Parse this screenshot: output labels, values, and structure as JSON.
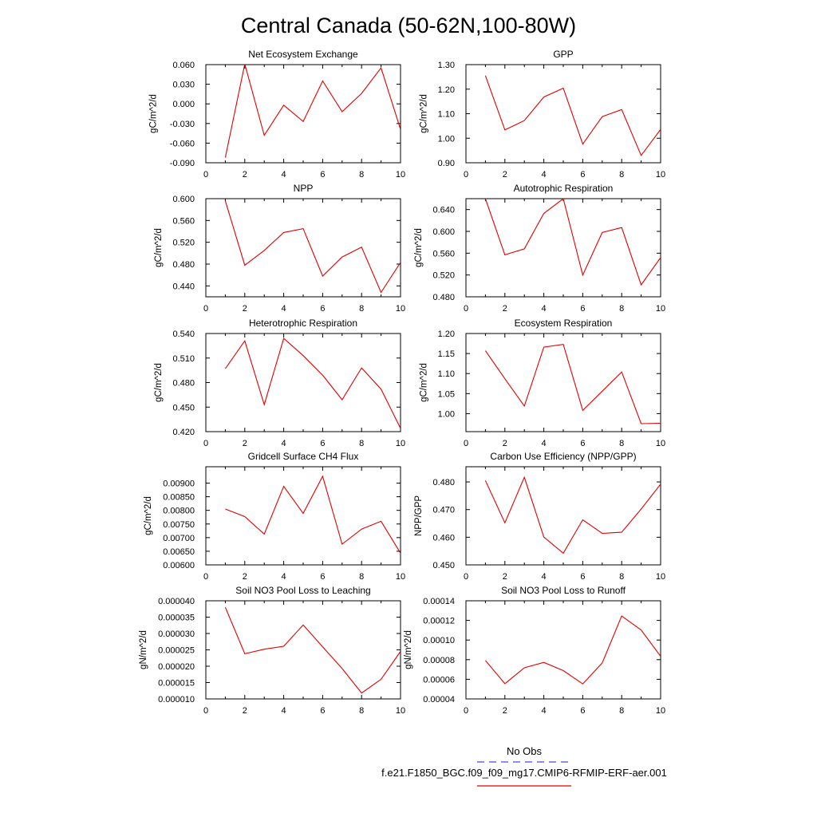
{
  "title": "Central Canada (50-62N,100-80W)",
  "legend": {
    "obs_label": "No Obs",
    "obs_color": "#4a4ad8",
    "case_label": "f.e21.F1850_BGC.f09_f09_mg17.CMIP6-RFMIP-ERF-aer.001",
    "case_color": "#e00000"
  },
  "line_color": "#e00000",
  "chart_data": [
    {
      "type": "line",
      "title": "Net Ecosystem Exchange",
      "ylabel": "gC/m^2/d",
      "xlim": [
        0,
        10
      ],
      "xticks": [
        "0",
        "2",
        "4",
        "6",
        "8",
        "10"
      ],
      "ylim": [
        -0.09,
        0.06
      ],
      "yticks": [
        "-0.090",
        "-0.060",
        "-0.030",
        "0.000",
        "0.030",
        "0.060"
      ],
      "x": [
        1,
        2,
        3,
        4,
        5,
        6,
        7,
        8,
        9,
        10
      ],
      "y": [
        -0.082,
        0.061,
        -0.048,
        -0.002,
        -0.027,
        0.035,
        -0.012,
        0.016,
        0.055,
        -0.039
      ]
    },
    {
      "type": "line",
      "title": "GPP",
      "ylabel": "gC/m^2/d",
      "xlim": [
        0,
        10
      ],
      "xticks": [
        "0",
        "2",
        "4",
        "6",
        "8",
        "10"
      ],
      "ylim": [
        0.9,
        1.3
      ],
      "yticks": [
        "0.90",
        "1.00",
        "1.10",
        "1.20",
        "1.30"
      ],
      "x": [
        1,
        2,
        3,
        4,
        5,
        6,
        7,
        8,
        9,
        10
      ],
      "y": [
        1.255,
        1.034,
        1.072,
        1.168,
        1.204,
        0.976,
        1.088,
        1.117,
        0.93,
        1.036
      ]
    },
    {
      "type": "line",
      "title": "NPP",
      "ylabel": "gC/m^2/d",
      "xlim": [
        0,
        10
      ],
      "xticks": [
        "0",
        "2",
        "4",
        "6",
        "8",
        "10"
      ],
      "ylim": [
        0.42,
        0.6
      ],
      "yticks": [
        "0.440",
        "0.480",
        "0.520",
        "0.560",
        "0.600"
      ],
      "x": [
        1,
        2,
        3,
        4,
        5,
        6,
        7,
        8,
        9,
        10
      ],
      "y": [
        0.596,
        0.478,
        0.505,
        0.538,
        0.545,
        0.458,
        0.493,
        0.511,
        0.428,
        0.483
      ]
    },
    {
      "type": "line",
      "title": "Autotrophic Respiration",
      "ylabel": "gC/m^2/d",
      "xlim": [
        0,
        10
      ],
      "xticks": [
        "0",
        "2",
        "4",
        "6",
        "8",
        "10"
      ],
      "ylim": [
        0.48,
        0.66
      ],
      "yticks": [
        "0.480",
        "0.520",
        "0.560",
        "0.600",
        "0.640"
      ],
      "x": [
        1,
        2,
        3,
        4,
        5,
        6,
        7,
        8,
        9,
        10
      ],
      "y": [
        0.66,
        0.557,
        0.568,
        0.633,
        0.66,
        0.52,
        0.598,
        0.607,
        0.502,
        0.552
      ]
    },
    {
      "type": "line",
      "title": "Heterotrophic Respiration",
      "ylabel": "gC/m^2/d",
      "xlim": [
        0,
        10
      ],
      "xticks": [
        "0",
        "2",
        "4",
        "6",
        "8",
        "10"
      ],
      "ylim": [
        0.42,
        0.54
      ],
      "yticks": [
        "0.420",
        "0.450",
        "0.480",
        "0.510",
        "0.540"
      ],
      "x": [
        1,
        2,
        3,
        4,
        5,
        6,
        7,
        8,
        9,
        10
      ],
      "y": [
        0.497,
        0.531,
        0.453,
        0.534,
        0.513,
        0.489,
        0.459,
        0.498,
        0.472,
        0.424
      ]
    },
    {
      "type": "line",
      "title": "Ecosystem Respiration",
      "ylabel": "gC/m^2/d",
      "xlim": [
        0,
        10
      ],
      "xticks": [
        "0",
        "2",
        "4",
        "6",
        "8",
        "10"
      ],
      "ylim": [
        0.955,
        1.2
      ],
      "yticks": [
        "1.00",
        "1.05",
        "1.10",
        "1.15",
        "1.20"
      ],
      "x": [
        1,
        2,
        3,
        4,
        5,
        6,
        7,
        8,
        9,
        10
      ],
      "y": [
        1.157,
        1.087,
        1.019,
        1.166,
        1.173,
        1.008,
        1.056,
        1.104,
        0.975,
        0.976
      ]
    },
    {
      "type": "line",
      "title": "Gridcell Surface CH4 Flux",
      "ylabel": "gC/m^2/d",
      "xlim": [
        0,
        10
      ],
      "xticks": [
        "0",
        "2",
        "4",
        "6",
        "8",
        "10"
      ],
      "ylim": [
        0.006,
        0.0096
      ],
      "yticks": [
        "0.00600",
        "0.00650",
        "0.00700",
        "0.00750",
        "0.00800",
        "0.00850",
        "0.00900"
      ],
      "x": [
        1,
        2,
        3,
        4,
        5,
        6,
        7,
        8,
        9,
        10
      ],
      "y": [
        0.00805,
        0.00777,
        0.00713,
        0.00888,
        0.00789,
        0.00925,
        0.00676,
        0.00731,
        0.0076,
        0.00643
      ]
    },
    {
      "type": "line",
      "title": "Carbon Use Efficiency (NPP/GPP)",
      "ylabel": "NPP/GPP",
      "xlim": [
        0,
        10
      ],
      "xticks": [
        "0",
        "2",
        "4",
        "6",
        "8",
        "10"
      ],
      "ylim": [
        0.45,
        0.4855
      ],
      "yticks": [
        "0.450",
        "0.460",
        "0.470",
        "0.480"
      ],
      "x": [
        1,
        2,
        3,
        4,
        5,
        6,
        7,
        8,
        9,
        10
      ],
      "y": [
        0.4805,
        0.4652,
        0.4817,
        0.4601,
        0.4542,
        0.4663,
        0.4614,
        0.4618,
        0.4702,
        0.4792
      ]
    },
    {
      "type": "line",
      "title": "Soil NO3 Pool Loss to Leaching",
      "ylabel": "gN/m^2/d",
      "xlim": [
        0,
        10
      ],
      "xticks": [
        "0",
        "2",
        "4",
        "6",
        "8",
        "10"
      ],
      "ylim": [
        1e-05,
        4e-05
      ],
      "yticks": [
        "0.000010",
        "0.000015",
        "0.000020",
        "0.000025",
        "0.000030",
        "0.000035",
        "0.000040"
      ],
      "x": [
        1,
        2,
        3,
        4,
        5,
        6,
        7,
        8,
        9,
        10
      ],
      "y": [
        3.8e-05,
        2.38e-05,
        2.52e-05,
        2.61e-05,
        3.26e-05,
        2.59e-05,
        1.93e-05,
        1.18e-05,
        1.6e-05,
        2.45e-05
      ]
    },
    {
      "type": "line",
      "title": "Soil NO3 Pool Loss to Runoff",
      "ylabel": "gN/m^2/d",
      "xlim": [
        0,
        10
      ],
      "xticks": [
        "0",
        "2",
        "4",
        "6",
        "8",
        "10"
      ],
      "ylim": [
        4e-05,
        0.00014
      ],
      "yticks": [
        "0.00004",
        "0.00006",
        "0.00008",
        "0.00010",
        "0.00012",
        "0.00014"
      ],
      "x": [
        1,
        2,
        3,
        4,
        5,
        6,
        7,
        8,
        9,
        10
      ],
      "y": [
        7.92e-05,
        5.55e-05,
        7.17e-05,
        7.72e-05,
        6.89e-05,
        5.53e-05,
        7.67e-05,
        0.0001245,
        0.0001102,
        8.35e-05
      ]
    }
  ]
}
